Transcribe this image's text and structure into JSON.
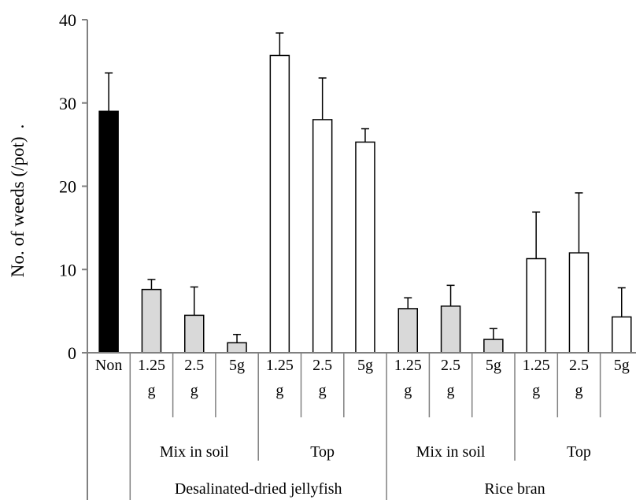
{
  "chart_data": {
    "type": "bar",
    "title": "",
    "xlabel": "",
    "ylabel": "No. of weeds (/pot)",
    "ylabel_trailing": ".",
    "ylim": [
      0,
      40
    ],
    "yticks": [
      0,
      10,
      20,
      30,
      40
    ],
    "grid": false,
    "legend": "none",
    "colors": {
      "control": "#000000",
      "mix_in_soil": "#d9d9d9",
      "top": "#ffffff",
      "outline": "#000000",
      "axis": "#808080"
    },
    "bars": [
      {
        "id": "non",
        "label": [
          "Non"
        ],
        "value": 29.0,
        "error": 4.6,
        "fill": "control"
      },
      {
        "id": "dj-mix-125",
        "label": [
          "1.25",
          "g"
        ],
        "value": 7.6,
        "error": 1.2,
        "fill": "mix_in_soil"
      },
      {
        "id": "dj-mix-25",
        "label": [
          "2.5",
          "g"
        ],
        "value": 4.5,
        "error": 3.4,
        "fill": "mix_in_soil"
      },
      {
        "id": "dj-mix-5",
        "label": [
          "5g"
        ],
        "value": 1.2,
        "error": 1.0,
        "fill": "mix_in_soil"
      },
      {
        "id": "dj-top-125",
        "label": [
          "1.25",
          "g"
        ],
        "value": 35.7,
        "error": 2.7,
        "fill": "top"
      },
      {
        "id": "dj-top-25",
        "label": [
          "2.5",
          "g"
        ],
        "value": 28.0,
        "error": 5.0,
        "fill": "top"
      },
      {
        "id": "dj-top-5",
        "label": [
          "5g"
        ],
        "value": 25.3,
        "error": 1.6,
        "fill": "top"
      },
      {
        "id": "rb-mix-125",
        "label": [
          "1.25",
          "g"
        ],
        "value": 5.3,
        "error": 1.3,
        "fill": "mix_in_soil"
      },
      {
        "id": "rb-mix-25",
        "label": [
          "2.5",
          "g"
        ],
        "value": 5.6,
        "error": 2.5,
        "fill": "mix_in_soil"
      },
      {
        "id": "rb-mix-5",
        "label": [
          "5g"
        ],
        "value": 1.6,
        "error": 1.3,
        "fill": "mix_in_soil"
      },
      {
        "id": "rb-top-125",
        "label": [
          "1.25",
          "g"
        ],
        "value": 11.3,
        "error": 5.6,
        "fill": "top"
      },
      {
        "id": "rb-top-25",
        "label": [
          "2.5",
          "g"
        ],
        "value": 12.0,
        "error": 7.2,
        "fill": "top"
      },
      {
        "id": "rb-top-5",
        "label": [
          "5g"
        ],
        "value": 4.3,
        "error": 3.5,
        "fill": "top"
      }
    ],
    "application_groups": [
      {
        "label": "Mix in soil",
        "first": 1,
        "last": 3
      },
      {
        "label": "Top",
        "first": 4,
        "last": 6
      },
      {
        "label": "Mix in soil",
        "first": 7,
        "last": 9
      },
      {
        "label": "Top",
        "first": 10,
        "last": 12
      }
    ],
    "material_groups": [
      {
        "label": "Desalinated-dried jellyfish",
        "first": 1,
        "last": 6
      },
      {
        "label": "Rice bran",
        "first": 7,
        "last": 12
      }
    ]
  }
}
